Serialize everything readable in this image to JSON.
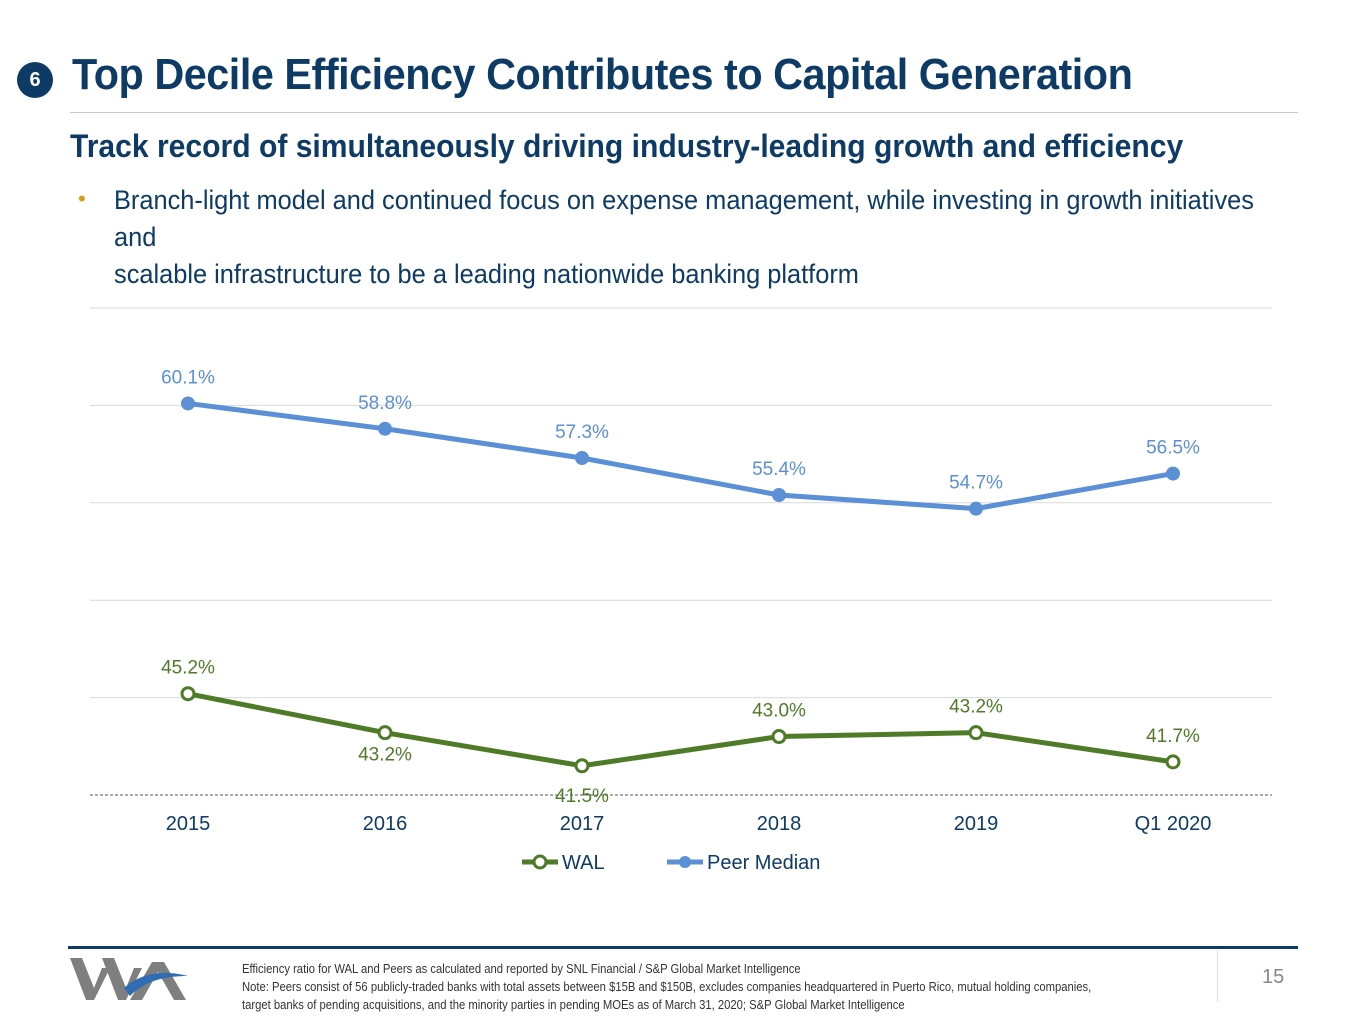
{
  "header": {
    "badge": "6",
    "title": "Top Decile Efficiency Contributes to Capital Generation",
    "subtitle": "Track record of simultaneously driving industry-leading growth and efficiency",
    "bullet_marker": "•",
    "bullet_line_1": "Branch-light model and continued focus on expense management, while investing in growth initiatives and",
    "bullet_line_2": "scalable infrastructure to be a leading nationwide banking platform"
  },
  "chart_data": {
    "type": "line",
    "categories": [
      "2015",
      "2016",
      "2017",
      "2018",
      "2019",
      "Q1 2020"
    ],
    "series": [
      {
        "name": "WAL",
        "values": [
          45.2,
          43.2,
          41.5,
          43.0,
          43.2,
          41.7
        ],
        "labels": [
          "45.2%",
          "43.2%",
          "41.5%",
          "43.0%",
          "43.2%",
          "41.7%"
        ],
        "color": "#4f7a28",
        "marker": "hollow-circle"
      },
      {
        "name": "Peer Median",
        "values": [
          60.1,
          58.8,
          57.3,
          55.4,
          54.7,
          56.5
        ],
        "labels": [
          "60.1%",
          "58.8%",
          "57.3%",
          "55.4%",
          "54.7%",
          "56.5%"
        ],
        "color": "#5b8fd6",
        "marker": "filled-circle"
      }
    ],
    "ylim": [
      40,
      65
    ],
    "grid": true,
    "legend": "bottom-center",
    "title": "",
    "xlabel": "",
    "ylabel": ""
  },
  "colors": {
    "navy": "#0d3b66",
    "accent": "#d4a017",
    "gridline": "#d9d9d9"
  },
  "footer": {
    "logo_icon": "western-alliance-logo",
    "footnote_line_1": "Efficiency ratio for WAL and Peers as calculated and reported by SNL Financial / S&P Global Market Intelligence",
    "footnote_line_2": "Note: Peers consist of 56 publicly-traded banks with total assets between $15B and $150B, excludes companies headquartered in Puerto Rico, mutual holding companies,",
    "footnote_line_3": "target banks of pending acquisitions, and the minority parties in pending MOEs as of March 31, 2020; S&P Global Market Intelligence",
    "page_number": "15"
  }
}
